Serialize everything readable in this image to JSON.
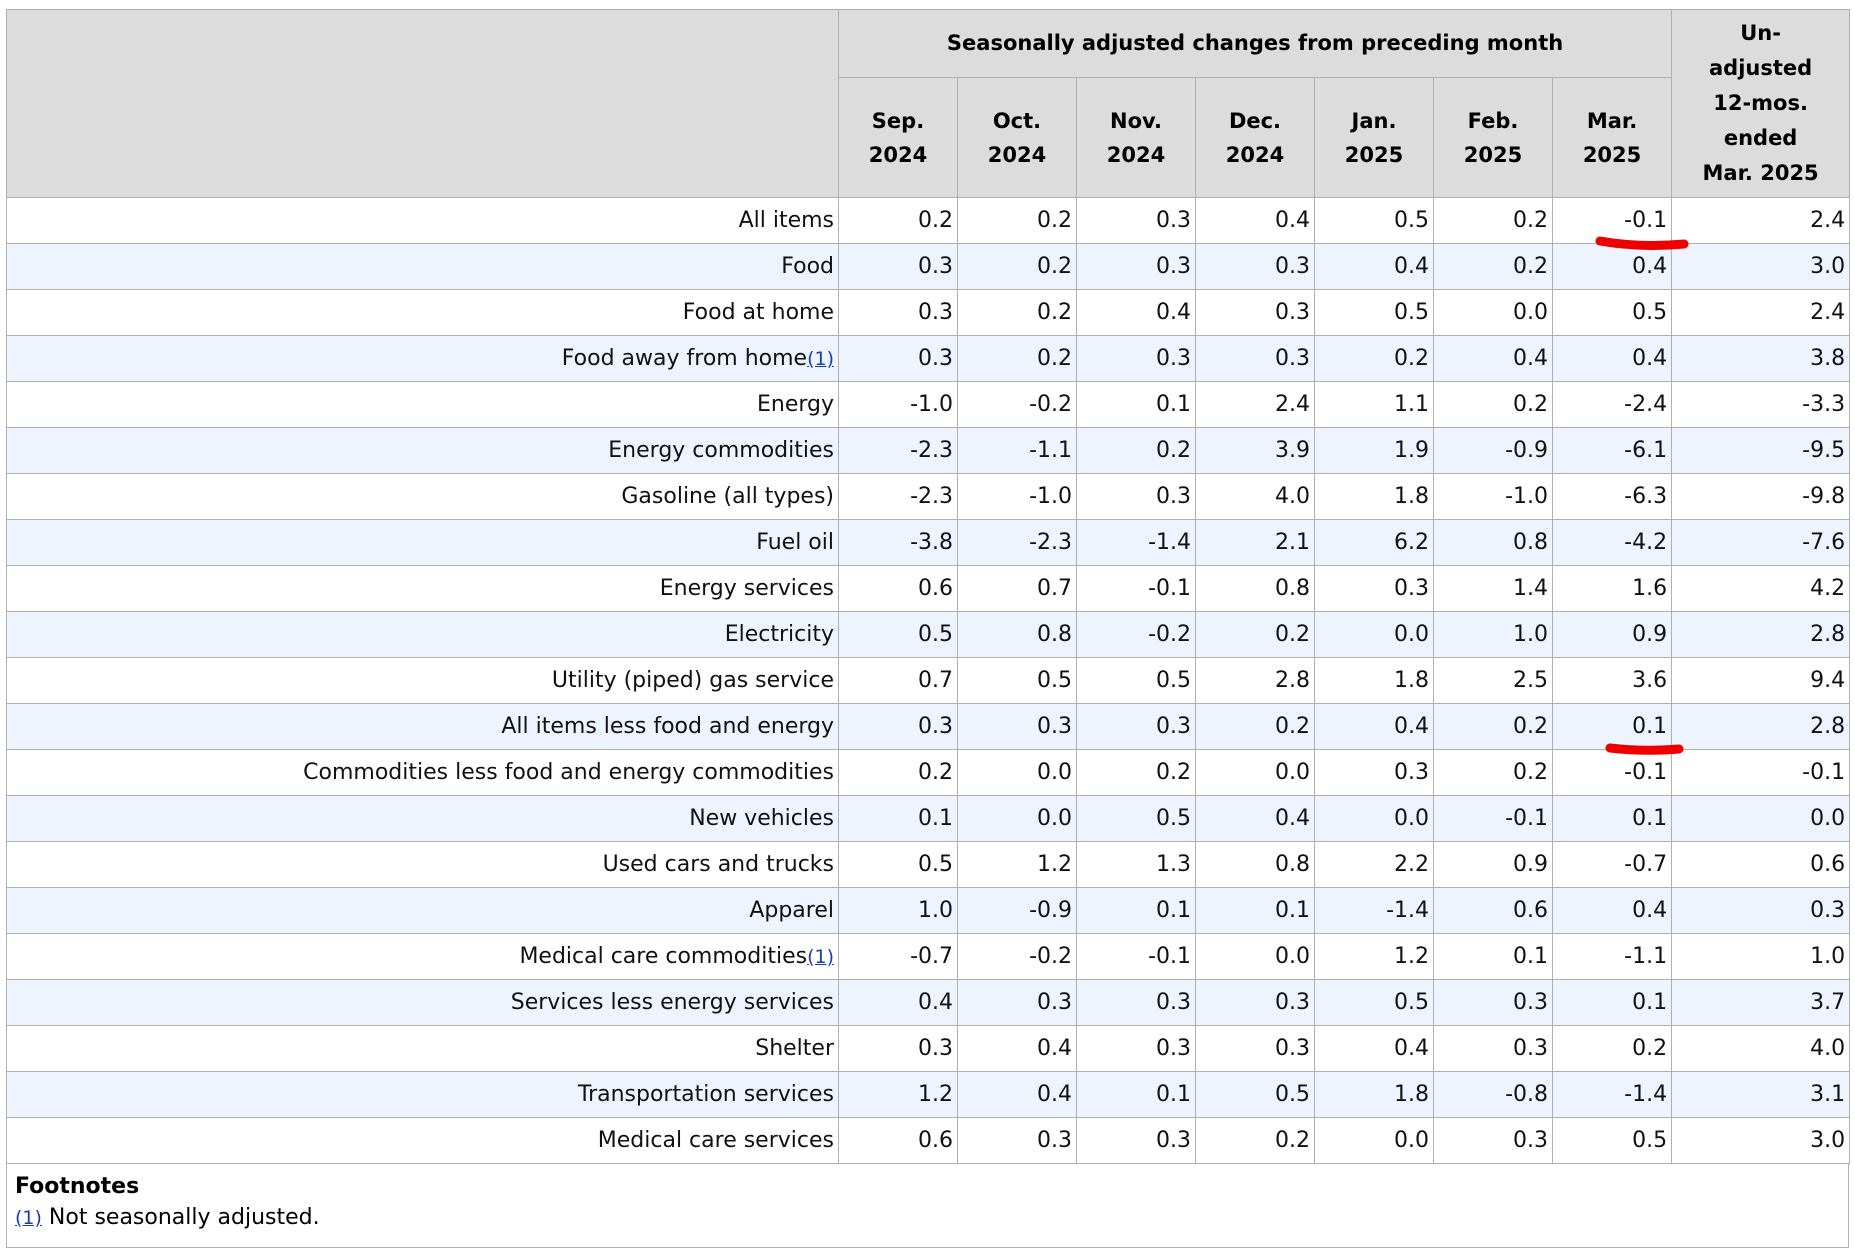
{
  "header": {
    "group_label": "Seasonally adjusted changes from preceding month",
    "columns": [
      [
        "Sep.",
        "2024"
      ],
      [
        "Oct.",
        "2024"
      ],
      [
        "Nov.",
        "2024"
      ],
      [
        "Dec.",
        "2024"
      ],
      [
        "Jan.",
        "2025"
      ],
      [
        "Feb.",
        "2025"
      ],
      [
        "Mar.",
        "2025"
      ]
    ],
    "last_column": [
      "Un-",
      "adjusted",
      "12-mos.",
      "ended",
      "Mar. 2025"
    ]
  },
  "table": {
    "rows": [
      {
        "label": "All items",
        "values": [
          "0.2",
          "0.2",
          "0.3",
          "0.4",
          "0.5",
          "0.2",
          "-0.1",
          "2.4"
        ]
      },
      {
        "label": "Food",
        "values": [
          "0.3",
          "0.2",
          "0.3",
          "0.3",
          "0.4",
          "0.2",
          "0.4",
          "3.0"
        ]
      },
      {
        "label": "Food at home",
        "values": [
          "0.3",
          "0.2",
          "0.4",
          "0.3",
          "0.5",
          "0.0",
          "0.5",
          "2.4"
        ]
      },
      {
        "label": "Food away from home",
        "footnote": "(1)",
        "values": [
          "0.3",
          "0.2",
          "0.3",
          "0.3",
          "0.2",
          "0.4",
          "0.4",
          "3.8"
        ]
      },
      {
        "label": "Energy",
        "values": [
          "-1.0",
          "-0.2",
          "0.1",
          "2.4",
          "1.1",
          "0.2",
          "-2.4",
          "-3.3"
        ]
      },
      {
        "label": "Energy commodities",
        "values": [
          "-2.3",
          "-1.1",
          "0.2",
          "3.9",
          "1.9",
          "-0.9",
          "-6.1",
          "-9.5"
        ]
      },
      {
        "label": "Gasoline (all types)",
        "values": [
          "-2.3",
          "-1.0",
          "0.3",
          "4.0",
          "1.8",
          "-1.0",
          "-6.3",
          "-9.8"
        ]
      },
      {
        "label": "Fuel oil",
        "values": [
          "-3.8",
          "-2.3",
          "-1.4",
          "2.1",
          "6.2",
          "0.8",
          "-4.2",
          "-7.6"
        ]
      },
      {
        "label": "Energy services",
        "values": [
          "0.6",
          "0.7",
          "-0.1",
          "0.8",
          "0.3",
          "1.4",
          "1.6",
          "4.2"
        ]
      },
      {
        "label": "Electricity",
        "values": [
          "0.5",
          "0.8",
          "-0.2",
          "0.2",
          "0.0",
          "1.0",
          "0.9",
          "2.8"
        ]
      },
      {
        "label": "Utility (piped) gas service",
        "values": [
          "0.7",
          "0.5",
          "0.5",
          "2.8",
          "1.8",
          "2.5",
          "3.6",
          "9.4"
        ]
      },
      {
        "label": "All items less food and energy",
        "values": [
          "0.3",
          "0.3",
          "0.3",
          "0.2",
          "0.4",
          "0.2",
          "0.1",
          "2.8"
        ]
      },
      {
        "label": "Commodities less food and energy commodities",
        "values": [
          "0.2",
          "0.0",
          "0.2",
          "0.0",
          "0.3",
          "0.2",
          "-0.1",
          "-0.1"
        ]
      },
      {
        "label": "New vehicles",
        "values": [
          "0.1",
          "0.0",
          "0.5",
          "0.4",
          "0.0",
          "-0.1",
          "0.1",
          "0.0"
        ]
      },
      {
        "label": "Used cars and trucks",
        "values": [
          "0.5",
          "1.2",
          "1.3",
          "0.8",
          "2.2",
          "0.9",
          "-0.7",
          "0.6"
        ]
      },
      {
        "label": "Apparel",
        "values": [
          "1.0",
          "-0.9",
          "0.1",
          "0.1",
          "-1.4",
          "0.6",
          "0.4",
          "0.3"
        ]
      },
      {
        "label": "Medical care commodities",
        "footnote": "(1)",
        "values": [
          "-0.7",
          "-0.2",
          "-0.1",
          "0.0",
          "1.2",
          "0.1",
          "-1.1",
          "1.0"
        ]
      },
      {
        "label": "Services less energy services",
        "values": [
          "0.4",
          "0.3",
          "0.3",
          "0.3",
          "0.5",
          "0.3",
          "0.1",
          "3.7"
        ]
      },
      {
        "label": "Shelter",
        "values": [
          "0.3",
          "0.4",
          "0.3",
          "0.3",
          "0.4",
          "0.3",
          "0.2",
          "4.0"
        ]
      },
      {
        "label": "Transportation services",
        "values": [
          "1.2",
          "0.4",
          "0.1",
          "0.5",
          "1.8",
          "-0.8",
          "-1.4",
          "3.1"
        ]
      },
      {
        "label": "Medical care services",
        "values": [
          "0.6",
          "0.3",
          "0.3",
          "0.2",
          "0.0",
          "0.3",
          "0.5",
          "3.0"
        ]
      }
    ]
  },
  "footnotes": {
    "title": "Footnotes",
    "ref": "(1)",
    "text": "Not seasonally adjusted."
  }
}
